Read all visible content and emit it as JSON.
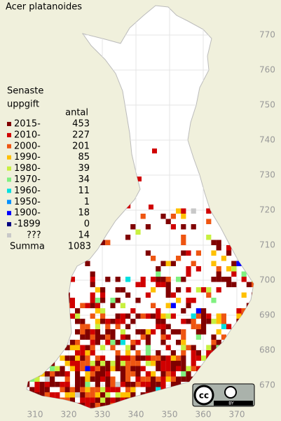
{
  "map": {
    "title": "Acer platanoides",
    "legend": {
      "heading": [
        "Senaste",
        "uppgift"
      ],
      "count_header": "antal",
      "rows": [
        {
          "label": "2015-",
          "count": 453,
          "color": "#800000"
        },
        {
          "label": "2010-",
          "count": 227,
          "color": "#d00000"
        },
        {
          "label": "2000-",
          "count": 201,
          "color": "#ee5511"
        },
        {
          "label": "1990-",
          "count": 85,
          "color": "#ffc000"
        },
        {
          "label": "1980-",
          "count": 39,
          "color": "#c8f040"
        },
        {
          "label": "1970-",
          "count": 34,
          "color": "#80f080"
        },
        {
          "label": "1960-",
          "count": 11,
          "color": "#00e0e0"
        },
        {
          "label": "1950-",
          "count": 1,
          "color": "#0090ff"
        },
        {
          "label": "1900-",
          "count": 18,
          "color": "#0000ff"
        },
        {
          "label": "-1899",
          "count": 0,
          "color": "#000080"
        },
        {
          "label": "???",
          "count": 14,
          "color": "#c8c8c8"
        }
      ],
      "total_label": "Summa",
      "total": 1083
    },
    "xticks": [
      310,
      320,
      330,
      340,
      350,
      360,
      370
    ],
    "yticks": [
      670,
      680,
      690,
      700,
      710,
      720,
      730,
      740,
      750,
      760,
      770
    ],
    "xlim": [
      300,
      380
    ],
    "ylim": [
      660,
      780
    ],
    "license": {
      "cc": "cc",
      "by": "BY"
    }
  }
}
